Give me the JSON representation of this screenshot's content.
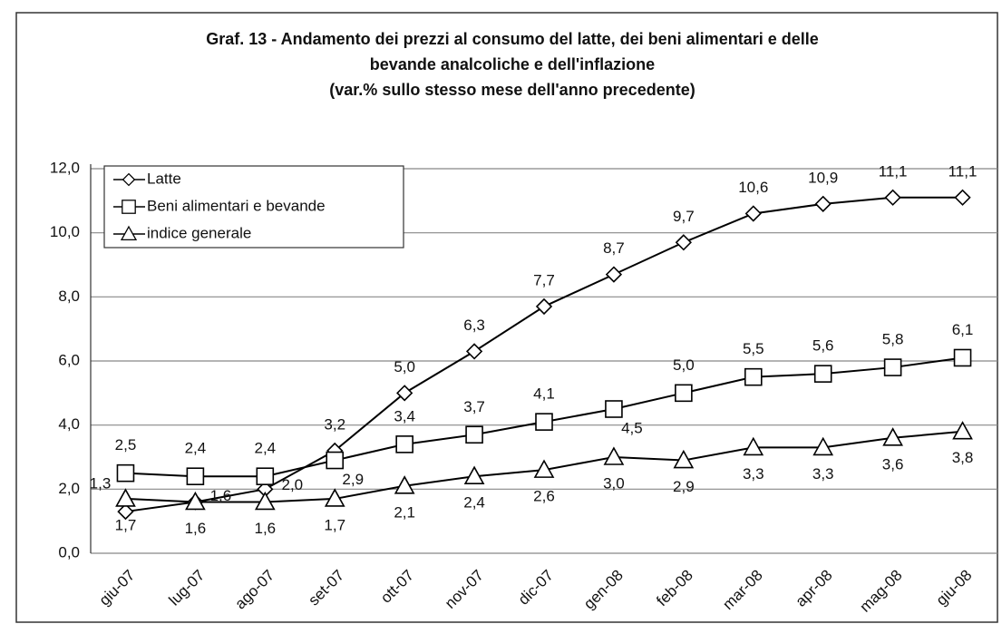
{
  "chart_data": {
    "type": "line",
    "title": [
      "Graf. 13 - Andamento dei prezzi al consumo del latte, dei beni alimentari e delle",
      "bevande analcoliche e dell'inflazione",
      "(var.% sullo stesso mese dell'anno precedente)"
    ],
    "categories": [
      "giu-07",
      "lug-07",
      "ago-07",
      "set-07",
      "ott-07",
      "nov-07",
      "dic-07",
      "gen-08",
      "feb-08",
      "mar-08",
      "apr-08",
      "mag-08",
      "giu-08"
    ],
    "series": [
      {
        "name": "Latte",
        "color": "#000000",
        "marker": "diamond",
        "values": [
          1.3,
          1.6,
          2.0,
          3.2,
          5.0,
          6.3,
          7.7,
          8.7,
          9.7,
          10.6,
          10.9,
          11.1,
          11.1
        ],
        "value_labels": [
          "1,3",
          "1,6",
          "2,0",
          "3,2",
          "5,0",
          "6,3",
          "7,7",
          "8,7",
          "9,7",
          "10,6",
          "10,9",
          "11,1",
          "11,1"
        ]
      },
      {
        "name": "Beni alimentari e bevande",
        "color": "#000000",
        "marker": "square",
        "values": [
          2.5,
          2.4,
          2.4,
          2.9,
          3.4,
          3.7,
          4.1,
          4.5,
          5.0,
          5.5,
          5.6,
          5.8,
          6.1
        ],
        "value_labels": [
          "2,5",
          "2,4",
          "2,4",
          "2,9",
          "3,4",
          "3,7",
          "4,1",
          "4,5",
          "5,0",
          "5,5",
          "5,6",
          "5,8",
          "6,1"
        ]
      },
      {
        "name": "indice generale",
        "color": "#000000",
        "marker": "triangle",
        "values": [
          1.7,
          1.6,
          1.6,
          1.7,
          2.1,
          2.4,
          2.6,
          3.0,
          2.9,
          3.3,
          3.3,
          3.6,
          3.8
        ],
        "value_labels": [
          "1,7",
          "1,6",
          "1,6",
          "1,7",
          "2,1",
          "2,4",
          "2,6",
          "3,0",
          "2,9",
          "3,3",
          "3,3",
          "3,6",
          "3,8"
        ]
      }
    ],
    "ylim": [
      0,
      12
    ],
    "yticks": [
      {
        "value": 0,
        "label": "0,0"
      },
      {
        "value": 2,
        "label": "2,0"
      },
      {
        "value": 4,
        "label": "4,0"
      },
      {
        "value": 6,
        "label": "6,0"
      },
      {
        "value": 8,
        "label": "8,0"
      },
      {
        "value": 10,
        "label": "10,0"
      },
      {
        "value": 12,
        "label": "12,0"
      }
    ],
    "grid": true,
    "legend": "upper left"
  }
}
